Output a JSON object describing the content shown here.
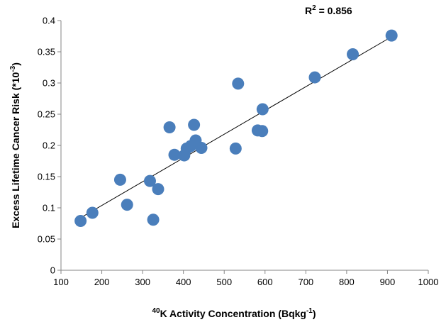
{
  "chart_data": {
    "type": "scatter",
    "xlabel": {
      "superscript": "40",
      "text": "K Activity Concentration (Bqkg",
      "unit_exponent": "-1",
      "suffix": ")"
    },
    "ylabel": {
      "text": "Excess  Lifetime Cancer Risk (*10",
      "exponent": "-3",
      "suffix": ")"
    },
    "annotation": {
      "text": "R",
      "superscript": "2",
      "value_text": " = 0.856"
    },
    "xlim": [
      100,
      1000
    ],
    "ylim": [
      0,
      0.4
    ],
    "x_ticks": [
      100,
      200,
      300,
      400,
      500,
      600,
      700,
      800,
      900,
      1000
    ],
    "y_ticks": [
      0,
      0.05,
      0.1,
      0.15,
      0.2,
      0.25,
      0.3,
      0.35,
      0.4
    ],
    "y_tick_labels": [
      "0",
      "0.05",
      "0.1",
      "0.15",
      "0.2",
      "0.25",
      "0.3",
      "0.35",
      "0.4"
    ],
    "x_tick_labels": [
      "100",
      "200",
      "300",
      "400",
      "500",
      "600",
      "700",
      "800",
      "900",
      "1000"
    ],
    "points": [
      {
        "x": 148,
        "y": 0.079
      },
      {
        "x": 177,
        "y": 0.092
      },
      {
        "x": 245,
        "y": 0.145
      },
      {
        "x": 262,
        "y": 0.105
      },
      {
        "x": 318,
        "y": 0.143
      },
      {
        "x": 326,
        "y": 0.081
      },
      {
        "x": 338,
        "y": 0.13
      },
      {
        "x": 366,
        "y": 0.229
      },
      {
        "x": 378,
        "y": 0.185
      },
      {
        "x": 402,
        "y": 0.184
      },
      {
        "x": 408,
        "y": 0.195
      },
      {
        "x": 418,
        "y": 0.199
      },
      {
        "x": 426,
        "y": 0.233
      },
      {
        "x": 430,
        "y": 0.208
      },
      {
        "x": 444,
        "y": 0.196
      },
      {
        "x": 528,
        "y": 0.195
      },
      {
        "x": 534,
        "y": 0.299
      },
      {
        "x": 582,
        "y": 0.224
      },
      {
        "x": 593,
        "y": 0.223
      },
      {
        "x": 594,
        "y": 0.258
      },
      {
        "x": 722,
        "y": 0.309
      },
      {
        "x": 815,
        "y": 0.346
      },
      {
        "x": 910,
        "y": 0.376
      }
    ],
    "trendline": {
      "x": [
        148,
        910
      ],
      "y": [
        0.084,
        0.374
      ]
    },
    "marker_color": "#4a7ebb",
    "line_color": "#000000",
    "grid": false,
    "legend": "none"
  }
}
